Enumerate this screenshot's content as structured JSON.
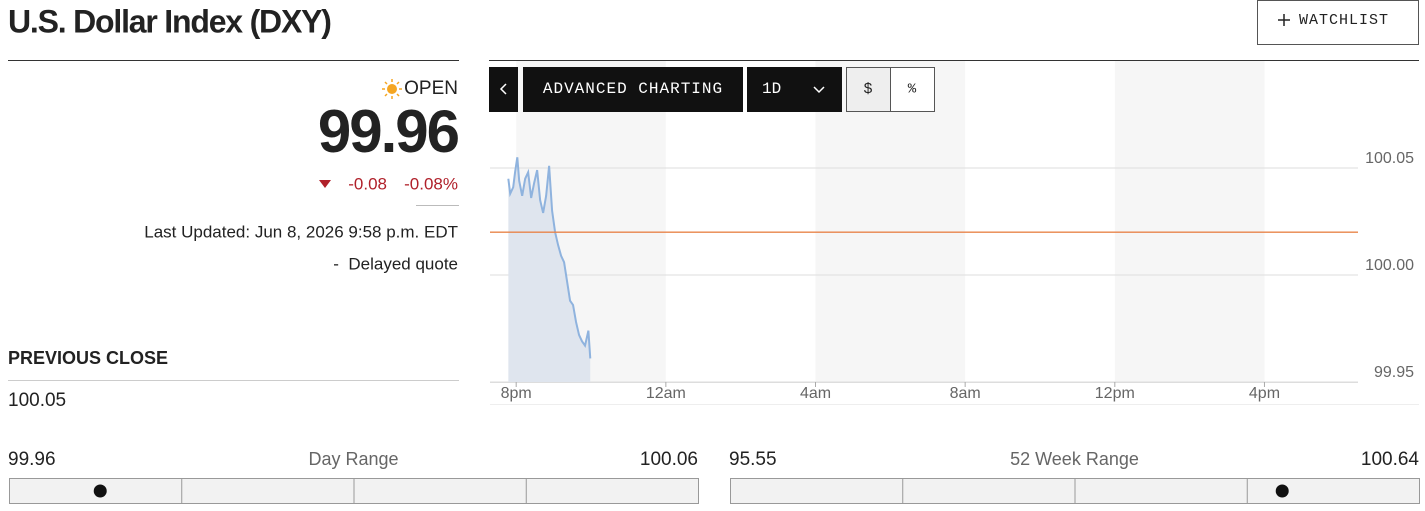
{
  "header": {
    "title": "U.S. Dollar Index (DXY)",
    "watchlist": "WATCHLIST"
  },
  "quote": {
    "status": "OPEN",
    "price": "99.96",
    "change": "-0.08",
    "change_pct": "-0.08%",
    "last_updated": "Last Updated: Jun 8, 2026 9:58 p.m. EDT",
    "delayed": "-  Delayed quote"
  },
  "previous_close": {
    "label": "PREVIOUS CLOSE",
    "value": "100.05"
  },
  "toolbar": {
    "advanced": "ADVANCED CHARTING",
    "interval": "1D",
    "dollar": "$",
    "percent": "%"
  },
  "chart_data": {
    "type": "line",
    "x": [
      -0.21,
      -0.16,
      -0.08,
      -0.03,
      0.03,
      0.08,
      0.16,
      0.24,
      0.32,
      0.4,
      0.48,
      0.56,
      0.64,
      0.72,
      0.8,
      0.88,
      0.96,
      1.04,
      1.12,
      1.2,
      1.28,
      1.36,
      1.44,
      1.52,
      1.6,
      1.68,
      1.76,
      1.84,
      1.93,
      1.98
    ],
    "series": [
      {
        "color": "#8fb3de",
        "values": [
          100.045,
          100.038,
          100.041,
          100.048,
          100.055,
          100.044,
          100.037,
          100.045,
          100.048,
          100.036,
          100.043,
          100.049,
          100.035,
          100.029,
          100.037,
          100.051,
          100.03,
          100.02,
          100.014,
          100.009,
          100.006,
          99.997,
          99.988,
          99.986,
          99.978,
          99.972,
          99.969,
          99.967,
          99.974,
          99.961
        ]
      }
    ],
    "area_color": "#dfe5ee",
    "reference_line": {
      "value": 100.02,
      "color": "#e8844a"
    },
    "xlim": [
      -0.7,
      22.5
    ],
    "xticks": [
      {
        "value": 0,
        "label": "8pm"
      },
      {
        "value": 4,
        "label": "12am"
      },
      {
        "value": 8,
        "label": "4am"
      },
      {
        "value": 12,
        "label": "8am"
      },
      {
        "value": 16,
        "label": "12pm"
      },
      {
        "value": 20,
        "label": "4pm"
      }
    ],
    "ylim": [
      99.95,
      100.1
    ],
    "yticks": [
      99.95,
      {
        "value": 100,
        "label": "100.00"
      },
      100.05
    ],
    "grid": true
  },
  "ranges": [
    {
      "low": 99.96,
      "label": "Day Range",
      "high": 100.06,
      "marker": 99.967
    },
    {
      "low": 95.55,
      "label": "52 Week Range",
      "high": 100.64,
      "marker": 99.89
    }
  ]
}
